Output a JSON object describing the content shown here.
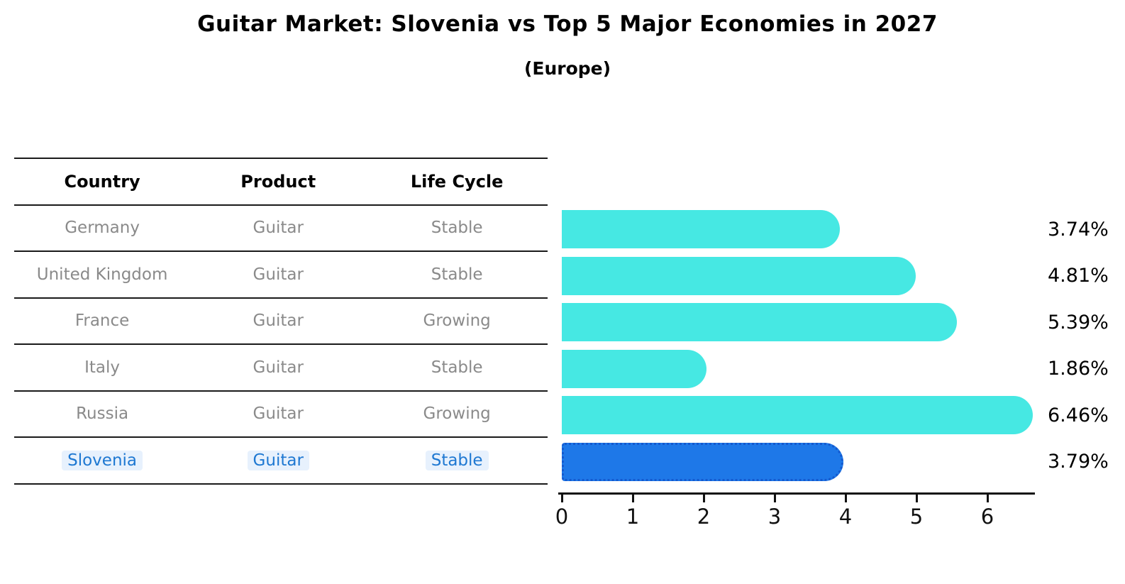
{
  "title": "Guitar Market: Slovenia vs Top 5 Major Economies in 2027",
  "subtitle": "(Europe)",
  "colors": {
    "bar": "#46e8e3",
    "highlight_bar": "#1e78e8",
    "highlight_bar_border": "#1459ce",
    "highlight_text": "#1e78d2",
    "row_text": "#8a8a8a",
    "axis": "#111111"
  },
  "table": {
    "headers": [
      "Country",
      "Product",
      "Life Cycle"
    ],
    "rows": [
      {
        "country": "Germany",
        "product": "Guitar",
        "life_cycle": "Stable",
        "highlight": false
      },
      {
        "country": "United Kingdom",
        "product": "Guitar",
        "life_cycle": "Stable",
        "highlight": false
      },
      {
        "country": "France",
        "product": "Guitar",
        "life_cycle": "Growing",
        "highlight": false
      },
      {
        "country": "Italy",
        "product": "Guitar",
        "life_cycle": "Stable",
        "highlight": false
      },
      {
        "country": "Russia",
        "product": "Guitar",
        "life_cycle": "Growing",
        "highlight": false
      },
      {
        "country": "Slovenia",
        "product": "Guitar",
        "life_cycle": "Stable",
        "highlight": true
      }
    ]
  },
  "chart_data": {
    "type": "bar",
    "orientation": "horizontal",
    "title": "Guitar Market: Slovenia vs Top 5 Major Economies in 2027",
    "subtitle": "(Europe)",
    "categories": [
      "Germany",
      "United Kingdom",
      "France",
      "Italy",
      "Russia",
      "Slovenia"
    ],
    "values": [
      3.74,
      4.81,
      5.39,
      1.86,
      6.46,
      3.79
    ],
    "value_labels": [
      "3.74%",
      "4.81%",
      "5.39%",
      "1.86%",
      "6.46%",
      "3.79%"
    ],
    "highlighted_category": "Slovenia",
    "xlabel": "",
    "ylabel": "",
    "xlim": [
      0,
      6.7
    ],
    "x_ticks": [
      "0",
      "1",
      "2",
      "3",
      "4",
      "5",
      "6"
    ],
    "grid": false,
    "legend": false
  }
}
